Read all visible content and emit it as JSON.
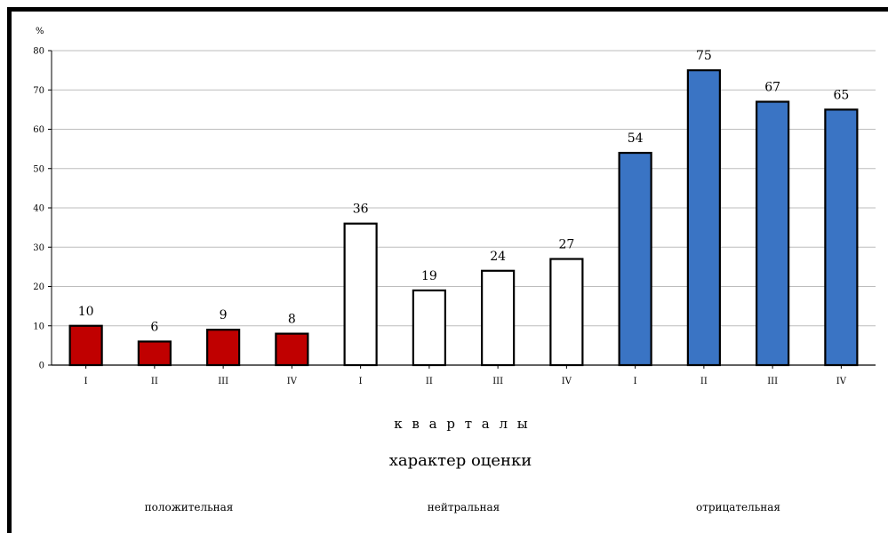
{
  "chart_data": {
    "type": "bar",
    "ylabel": "%",
    "ylim": [
      0,
      80
    ],
    "yticks": [
      0,
      10,
      20,
      30,
      40,
      50,
      60,
      70,
      80
    ],
    "grid": true,
    "xlabel": "к в а р т а л ы",
    "subtitle": "характер оценки",
    "categories": [
      "I",
      "II",
      "III",
      "IV",
      "I",
      "II",
      "III",
      "IV",
      "I",
      "II",
      "III",
      "IV"
    ],
    "groups": [
      {
        "name": "положительная",
        "color": "#c00000",
        "categories": [
          "I",
          "II",
          "III",
          "IV"
        ],
        "values": [
          10,
          6,
          9,
          8
        ]
      },
      {
        "name": "нейтральная",
        "color": "#ffffff",
        "categories": [
          "I",
          "II",
          "III",
          "IV"
        ],
        "values": [
          36,
          19,
          24,
          27
        ]
      },
      {
        "name": "отрицательная",
        "color": "#3a74c4",
        "categories": [
          "I",
          "II",
          "III",
          "IV"
        ],
        "values": [
          54,
          75,
          67,
          65
        ]
      }
    ]
  }
}
